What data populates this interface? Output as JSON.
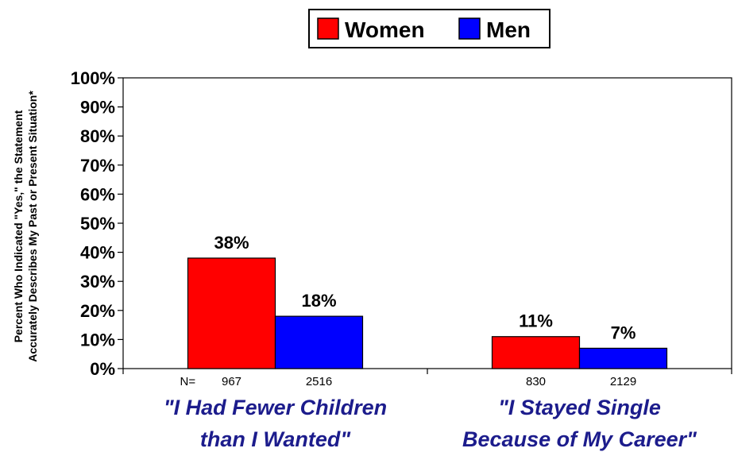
{
  "chart_data": {
    "type": "bar",
    "categories": [
      [
        "\"I Had Fewer Children",
        "than I Wanted\""
      ],
      [
        "\"I Stayed Single",
        "Because of My Career\""
      ]
    ],
    "series": [
      {
        "name": "Women",
        "color": "#ff0000",
        "values": [
          38,
          11
        ],
        "labels": [
          "38%",
          "11%"
        ],
        "n": [
          "967",
          "830"
        ]
      },
      {
        "name": "Men",
        "color": "#0000ff",
        "values": [
          18,
          7
        ],
        "labels": [
          "18%",
          "7%"
        ],
        "n": [
          "2516",
          "2129"
        ]
      }
    ],
    "n_prefix": "N=",
    "ylabel_lines": [
      "Percent Who Indicated \"Yes,\" the Statement",
      "Accurately Describes My Past or Present Situation*"
    ],
    "ylim": [
      0,
      100
    ],
    "yticks": [
      "0%",
      "10%",
      "20%",
      "30%",
      "40%",
      "50%",
      "60%",
      "70%",
      "80%",
      "90%",
      "100%"
    ],
    "grid": false,
    "legend_position": "top-center"
  }
}
